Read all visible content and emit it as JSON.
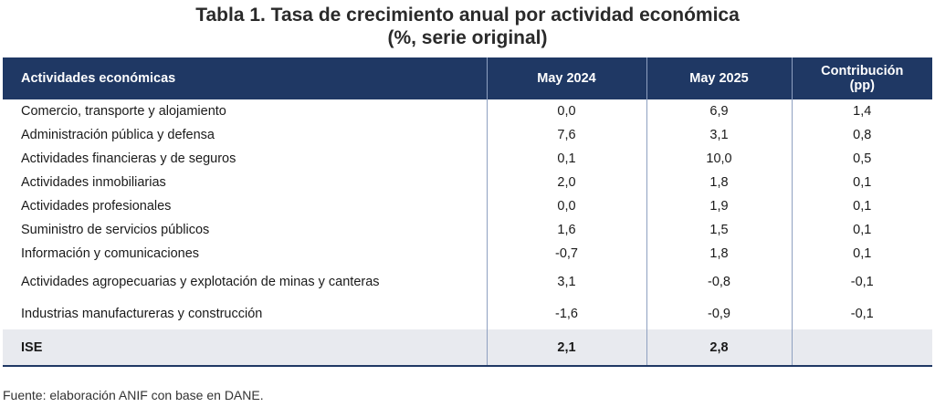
{
  "title": {
    "line1": "Tabla 1. Tasa de crecimiento anual por actividad económica",
    "line2": "(%, serie original)"
  },
  "table": {
    "headers": [
      "Actividades económicas",
      "May 2024",
      "May 2025",
      "Contribución",
      "(pp)"
    ],
    "rows": [
      [
        "Comercio, transporte y alojamiento",
        "0,0",
        "6,9",
        "1,4"
      ],
      [
        "Administración pública y defensa",
        "7,6",
        "3,1",
        "0,8"
      ],
      [
        "Actividades financieras y de seguros",
        "0,1",
        "10,0",
        "0,5"
      ],
      [
        "Actividades inmobiliarias",
        "2,0",
        "1,8",
        "0,1"
      ],
      [
        "Actividades profesionales",
        "0,0",
        "1,9",
        "0,1"
      ],
      [
        "Suministro de servicios públicos",
        "1,6",
        "1,5",
        "0,1"
      ],
      [
        "Información y comunicaciones",
        "-0,7",
        "1,8",
        "0,1"
      ],
      [
        "Actividades agropecuarias y explotación de minas y canteras",
        "3,1",
        "-0,8",
        "-0,1"
      ],
      [
        "Industrias manufactureras y construcción",
        "-1,6",
        "-0,9",
        "-0,1"
      ]
    ],
    "total": [
      "ISE",
      "2,1",
      "2,8",
      ""
    ]
  },
  "source": "Fuente: elaboración ANIF con base en DANE.",
  "colors": {
    "header_bg": "#1f3864",
    "total_bg": "#e8eaef"
  }
}
